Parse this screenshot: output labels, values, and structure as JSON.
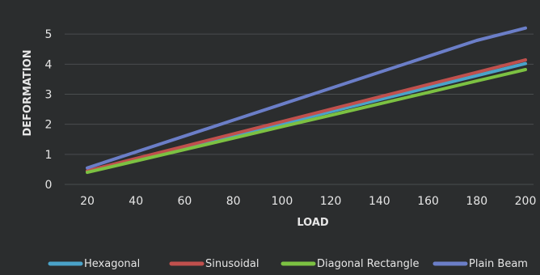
{
  "chart_data": {
    "type": "line",
    "xlabel": "LOAD",
    "ylabel": "DEFORMATION",
    "x": [
      20,
      40,
      60,
      80,
      100,
      120,
      140,
      160,
      180,
      200
    ],
    "ylim": [
      0,
      6
    ],
    "yticks": [
      0,
      1,
      2,
      3,
      4,
      5
    ],
    "xlim": [
      20,
      200
    ],
    "grid": true,
    "legend_position": "bottom",
    "series": [
      {
        "name": "Hexagonal",
        "color": "#4aa3c9",
        "values": [
          0.42,
          0.82,
          1.22,
          1.62,
          2.02,
          2.42,
          2.82,
          3.22,
          3.62,
          4.02
        ]
      },
      {
        "name": "Sinusoidal",
        "color": "#c0504d",
        "values": [
          0.45,
          0.86,
          1.27,
          1.68,
          2.09,
          2.5,
          2.91,
          3.32,
          3.73,
          4.14
        ]
      },
      {
        "name": "Diagonal Rectangle",
        "color": "#7cc142",
        "values": [
          0.4,
          0.78,
          1.16,
          1.54,
          1.92,
          2.3,
          2.68,
          3.06,
          3.44,
          3.82
        ]
      },
      {
        "name": "Plain Beam",
        "color": "#6b7ec8",
        "values": [
          0.55,
          1.08,
          1.61,
          2.14,
          2.67,
          3.2,
          3.73,
          4.26,
          4.79,
          5.2
        ]
      }
    ]
  }
}
